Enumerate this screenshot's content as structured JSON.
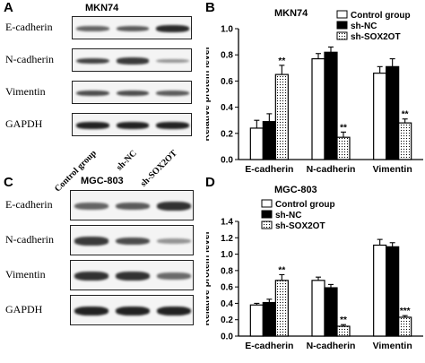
{
  "panels": {
    "A": {
      "letter": "A",
      "title": "MKN74",
      "rows": [
        "E-cadherin",
        "N-cadherin",
        "Vimentin",
        "GAPDH"
      ],
      "lanes": [
        "Control group",
        "sh-NC",
        "sh-SOX2OT"
      ],
      "band_intensity": [
        [
          0.55,
          0.6,
          0.9
        ],
        [
          0.75,
          0.8,
          0.25
        ],
        [
          0.7,
          0.7,
          0.6
        ],
        [
          0.95,
          0.95,
          0.95
        ]
      ]
    },
    "C": {
      "letter": "C",
      "title": "MGC-803",
      "rows": [
        "E-cadherin",
        "N-cadherin",
        "Vimentin",
        "GAPDH"
      ],
      "band_intensity": [
        [
          0.55,
          0.6,
          0.85
        ],
        [
          0.8,
          0.7,
          0.25
        ],
        [
          0.85,
          0.85,
          0.5
        ],
        [
          0.95,
          0.95,
          0.95
        ]
      ]
    }
  },
  "chart_data": [
    {
      "letter": "B",
      "type": "bar",
      "title": "MKN74",
      "ylabel": "Relative protein level",
      "ylim": [
        0,
        1.0
      ],
      "yticks": [
        "0.0",
        "0.2",
        "0.4",
        "0.6",
        "0.8",
        "1.0"
      ],
      "categories": [
        "E-cadherin",
        "N-cadherin",
        "Vimentin"
      ],
      "series": [
        {
          "name": "Control group",
          "values": [
            0.24,
            0.77,
            0.66
          ],
          "errors": [
            0.06,
            0.04,
            0.05
          ]
        },
        {
          "name": "sh-NC",
          "values": [
            0.29,
            0.82,
            0.71
          ],
          "errors": [
            0.06,
            0.04,
            0.06
          ]
        },
        {
          "name": "sh-SOX2OT",
          "values": [
            0.65,
            0.17,
            0.28
          ],
          "errors": [
            0.07,
            0.04,
            0.03
          ]
        }
      ],
      "annotations": [
        "**",
        "**",
        "**"
      ],
      "legend_position": "top-right"
    },
    {
      "letter": "D",
      "type": "bar",
      "title": "MGC-803",
      "ylabel": "Relative protein level",
      "ylim": [
        0,
        1.4
      ],
      "yticks": [
        "0.0",
        "0.2",
        "0.4",
        "0.6",
        "0.8",
        "1.0",
        "1.2",
        "1.4"
      ],
      "categories": [
        "E-cadherin",
        "N-cadherin",
        "Vimentin"
      ],
      "series": [
        {
          "name": "Control group",
          "values": [
            0.38,
            0.68,
            1.11
          ],
          "errors": [
            0.02,
            0.04,
            0.07
          ]
        },
        {
          "name": "sh-NC",
          "values": [
            0.41,
            0.59,
            1.09
          ],
          "errors": [
            0.04,
            0.04,
            0.05
          ]
        },
        {
          "name": "sh-SOX2OT",
          "values": [
            0.68,
            0.12,
            0.23
          ],
          "errors": [
            0.07,
            0.02,
            0.02
          ]
        }
      ],
      "annotations": [
        "**",
        "**",
        "***"
      ],
      "legend_position": "top-left"
    }
  ],
  "styles": {
    "series_fills": [
      "#ffffff",
      "#000000",
      "dotted"
    ],
    "band_color": "#1a1a1a"
  }
}
